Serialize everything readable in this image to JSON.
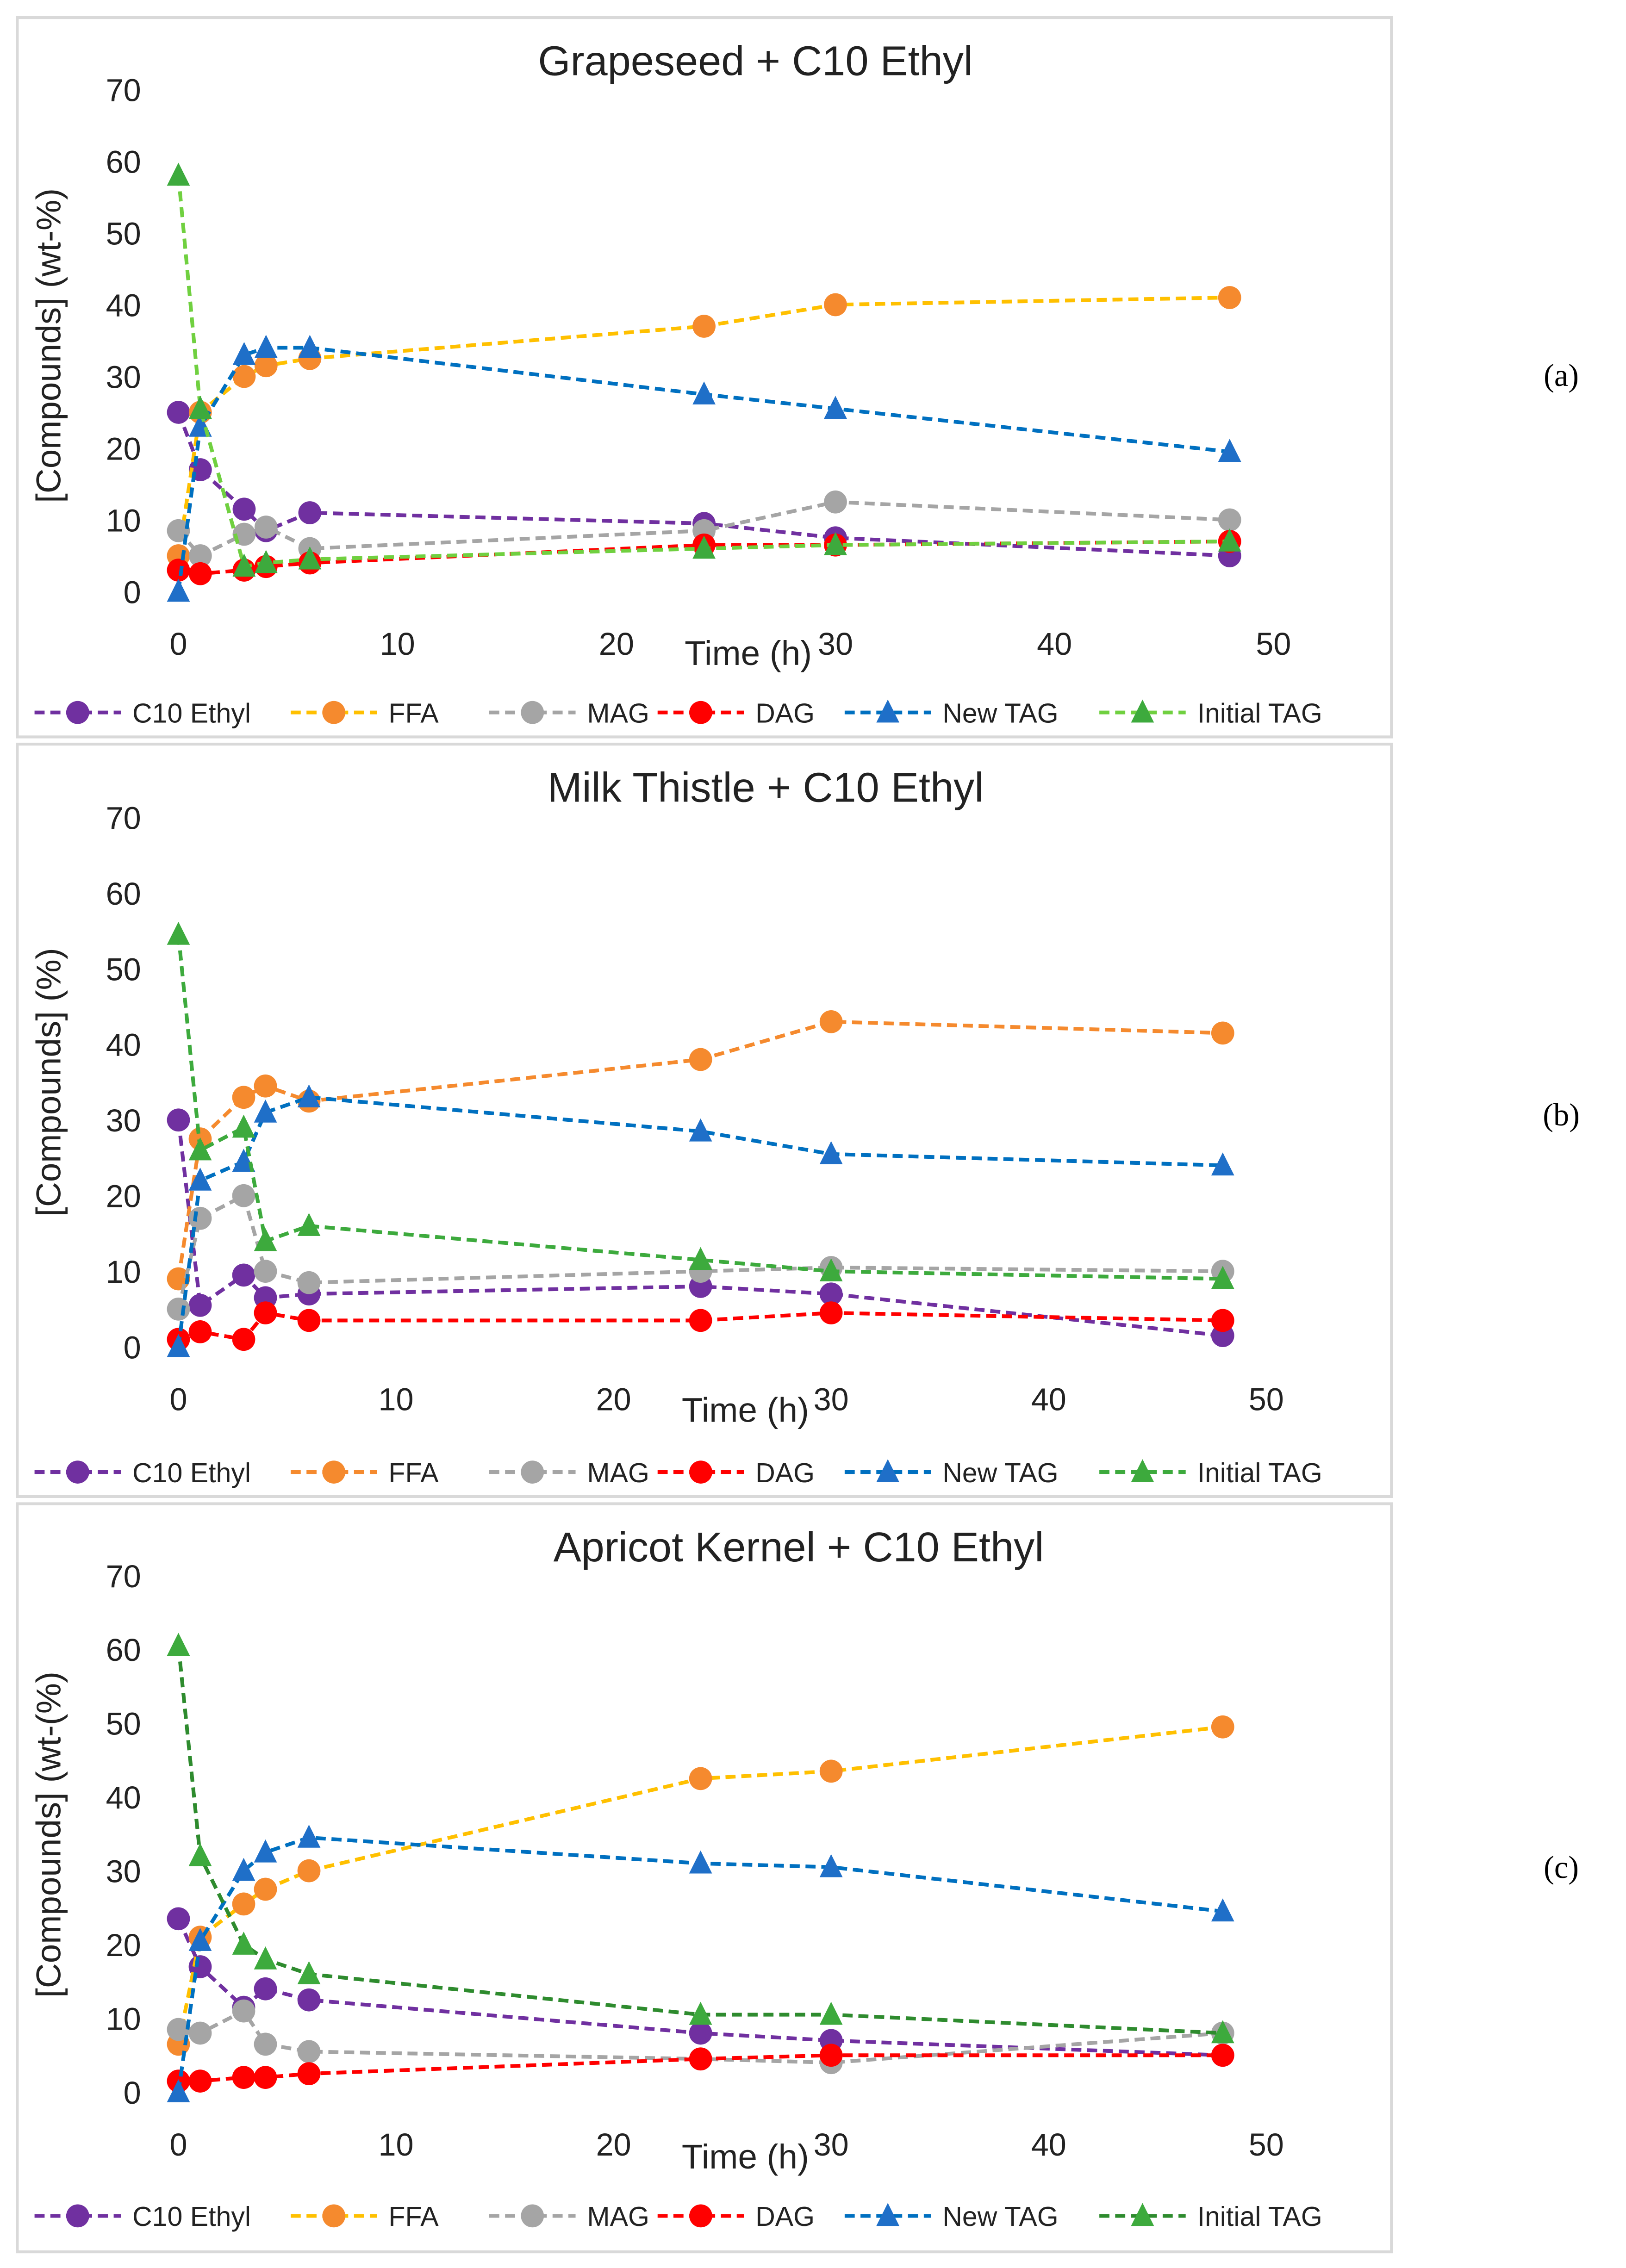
{
  "chart_data": [
    {
      "id": "a",
      "type": "line",
      "panel_label": "(a)",
      "title": "Grapeseed + C10 Ethyl",
      "xlabel": "Time (h)",
      "ylabel": "[Compounds] (wt-%)",
      "xlim": [
        0,
        50
      ],
      "ylim": [
        0,
        70
      ],
      "xticks": [
        "0",
        "10",
        "20",
        "30",
        "40",
        "50"
      ],
      "yticks": [
        "0",
        "10",
        "20",
        "30",
        "40",
        "50",
        "60",
        "70"
      ],
      "grid": false,
      "legend": "bottom",
      "x": [
        0,
        1,
        3,
        4,
        6,
        24,
        30,
        48
      ],
      "series": [
        {
          "name": "C10 Ethyl",
          "line": "#7030A0",
          "marker": "#7030A0",
          "shape": "circle",
          "values": [
            25,
            17,
            11.5,
            8.5,
            11,
            9.5,
            7.5,
            5
          ]
        },
        {
          "name": "FFA",
          "line": "#FFC000",
          "marker": "#F58A2E",
          "shape": "circle",
          "values": [
            5,
            25,
            30,
            31.5,
            32.5,
            37,
            40,
            41
          ]
        },
        {
          "name": "MAG",
          "line": "#A5A5A5",
          "marker": "#A5A5A5",
          "shape": "circle",
          "values": [
            8.5,
            5,
            8,
            9,
            6,
            8.5,
            12.5,
            10
          ]
        },
        {
          "name": "DAG",
          "line": "#FF0000",
          "marker": "#FF0000",
          "shape": "circle",
          "values": [
            3,
            2.5,
            3,
            3.5,
            4,
            6.5,
            6.5,
            7
          ]
        },
        {
          "name": "New TAG",
          "line": "#0070C0",
          "marker": "#1F6FC8",
          "shape": "triangle",
          "values": [
            0,
            23,
            33,
            34,
            34,
            27.5,
            25.5,
            19.5
          ]
        },
        {
          "name": "Initial TAG",
          "line": "#70D040",
          "marker": "#3DAA3D",
          "shape": "triangle",
          "values": [
            58,
            25.5,
            3.5,
            4,
            4.5,
            6,
            6.5,
            7
          ]
        }
      ]
    },
    {
      "id": "b",
      "type": "line",
      "panel_label": "(b)",
      "title": "Milk Thistle + C10 Ethyl",
      "xlabel": "Time (h)",
      "ylabel": "[Compounds] (%)",
      "xlim": [
        0,
        50
      ],
      "ylim": [
        0,
        70
      ],
      "xticks": [
        "0",
        "10",
        "20",
        "30",
        "40",
        "50"
      ],
      "yticks": [
        "0",
        "10",
        "20",
        "30",
        "40",
        "50",
        "60",
        "70"
      ],
      "grid": false,
      "legend": "bottom",
      "x": [
        0,
        1,
        3,
        4,
        6,
        24,
        30,
        48
      ],
      "series": [
        {
          "name": "C10 Ethyl",
          "line": "#7030A0",
          "marker": "#7030A0",
          "shape": "circle",
          "values": [
            30,
            5.5,
            9.5,
            6.5,
            7,
            8,
            7,
            1.5
          ]
        },
        {
          "name": "FFA",
          "line": "#F58A2E",
          "marker": "#F58A2E",
          "shape": "circle",
          "values": [
            9,
            27.5,
            33,
            34.5,
            32.5,
            38,
            43,
            41.5
          ]
        },
        {
          "name": "MAG",
          "line": "#A5A5A5",
          "marker": "#A5A5A5",
          "shape": "circle",
          "values": [
            5,
            17,
            20,
            10,
            8.5,
            10,
            10.5,
            10
          ]
        },
        {
          "name": "DAG",
          "line": "#FF0000",
          "marker": "#FF0000",
          "shape": "circle",
          "values": [
            1,
            2,
            1,
            4.5,
            3.5,
            3.5,
            4.5,
            3.5
          ]
        },
        {
          "name": "New TAG",
          "line": "#0070C0",
          "marker": "#1F6FC8",
          "shape": "triangle",
          "values": [
            0,
            22,
            24.5,
            31,
            33,
            28.5,
            25.5,
            24
          ]
        },
        {
          "name": "Initial TAG",
          "line": "#3DAA3D",
          "marker": "#3DAA3D",
          "shape": "triangle",
          "values": [
            54.5,
            26,
            29,
            14,
            16,
            11.5,
            10,
            9
          ]
        }
      ]
    },
    {
      "id": "c",
      "type": "line",
      "panel_label": "(c)",
      "title": "Apricot Kernel + C10 Ethyl",
      "xlabel": "Time (h)",
      "ylabel": "[Compounds] (wt-(%)",
      "xlim": [
        0,
        50
      ],
      "ylim": [
        0,
        70
      ],
      "xticks": [
        "0",
        "10",
        "20",
        "30",
        "40",
        "50"
      ],
      "yticks": [
        "0",
        "10",
        "20",
        "30",
        "40",
        "50",
        "60",
        "70"
      ],
      "grid": false,
      "legend": "bottom",
      "x": [
        0,
        1,
        3,
        4,
        6,
        24,
        30,
        48
      ],
      "series": [
        {
          "name": "C10 Ethyl",
          "line": "#7030A0",
          "marker": "#7030A0",
          "shape": "circle",
          "values": [
            23.5,
            17,
            11.5,
            14,
            12.5,
            8,
            7,
            5
          ]
        },
        {
          "name": "FFA",
          "line": "#FFC000",
          "marker": "#F58A2E",
          "shape": "circle",
          "values": [
            6.5,
            21,
            25.5,
            27.5,
            30,
            42.5,
            43.5,
            49.5
          ]
        },
        {
          "name": "MAG",
          "line": "#A5A5A5",
          "marker": "#A5A5A5",
          "shape": "circle",
          "values": [
            8.5,
            8,
            11,
            6.5,
            5.5,
            4.5,
            4,
            8
          ]
        },
        {
          "name": "DAG",
          "line": "#FF0000",
          "marker": "#FF0000",
          "shape": "circle",
          "values": [
            1.5,
            1.5,
            2,
            2,
            2.5,
            4.5,
            5,
            5
          ]
        },
        {
          "name": "New TAG",
          "line": "#0070C0",
          "marker": "#1F6FC8",
          "shape": "triangle",
          "values": [
            0,
            20.5,
            30,
            32.5,
            34.5,
            31,
            30.5,
            24.5
          ]
        },
        {
          "name": "Initial TAG",
          "line": "#2E8B2E",
          "marker": "#3DAA3D",
          "shape": "triangle",
          "values": [
            60.5,
            32,
            20,
            18,
            16,
            10.5,
            10.5,
            8
          ]
        }
      ]
    }
  ]
}
